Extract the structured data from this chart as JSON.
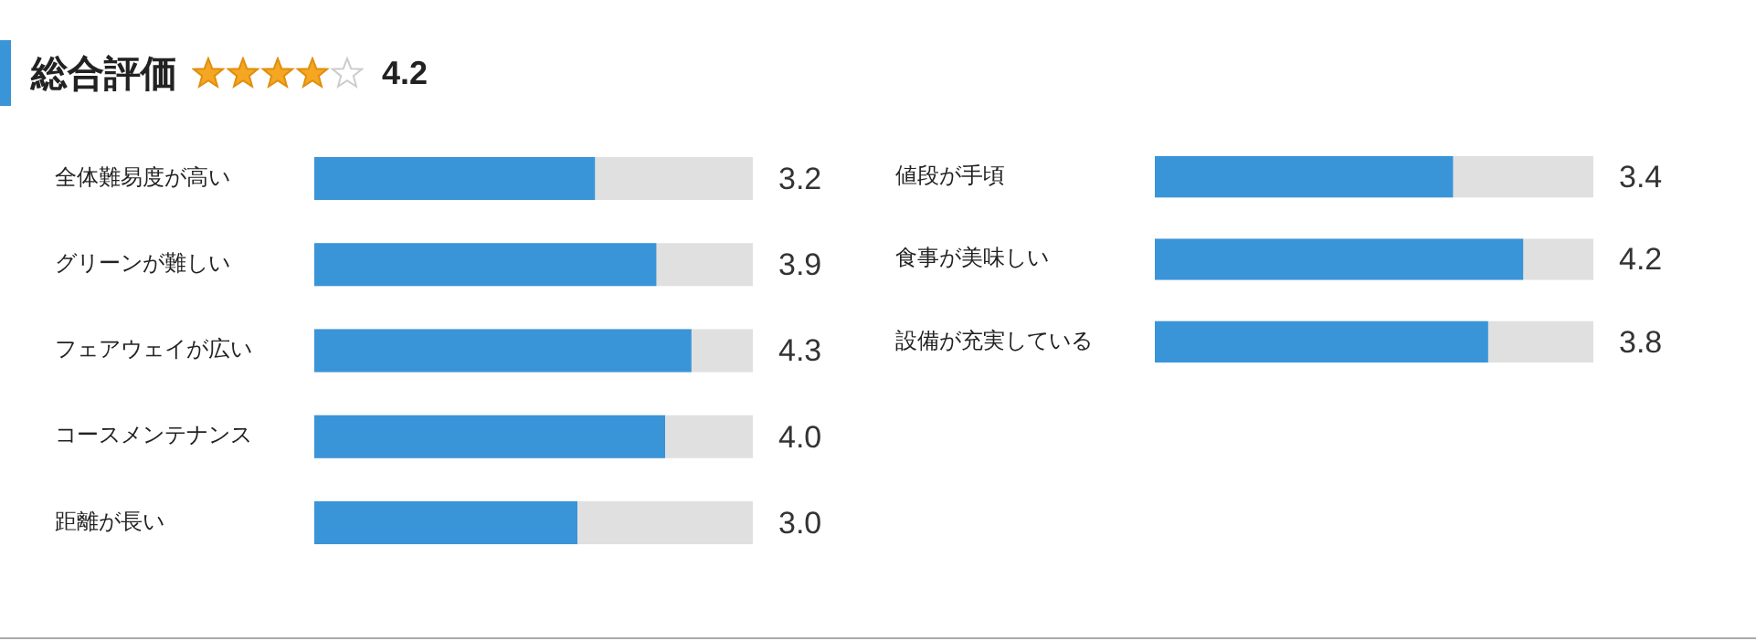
{
  "chart_data": [
    {
      "type": "bar",
      "orientation": "horizontal",
      "title": "総合評価",
      "annotations": [
        "4.2"
      ],
      "categories": [
        "全体難易度が高い",
        "グリーンが難しい",
        "フェアウェイが広い",
        "コースメンテナンス",
        "距離が長い"
      ],
      "values": [
        3.2,
        3.9,
        4.3,
        4.0,
        3.0
      ],
      "value_labels": [
        "3.2",
        "3.9",
        "4.3",
        "4.0",
        "3.0"
      ],
      "color": "#3a94d8",
      "xlim": [
        0,
        5
      ],
      "tick_labels": "y"
    },
    {
      "type": "bar",
      "orientation": "horizontal",
      "categories": [
        "値段が手頃",
        "食事が美味しい",
        "設備が充実している"
      ],
      "values": [
        3.4,
        4.2,
        3.8
      ],
      "value_labels": [
        "3.4",
        "4.2",
        "3.8"
      ],
      "color": "#3a94d8",
      "xlim": [
        0,
        5
      ],
      "tick_labels": "y"
    }
  ]
}
